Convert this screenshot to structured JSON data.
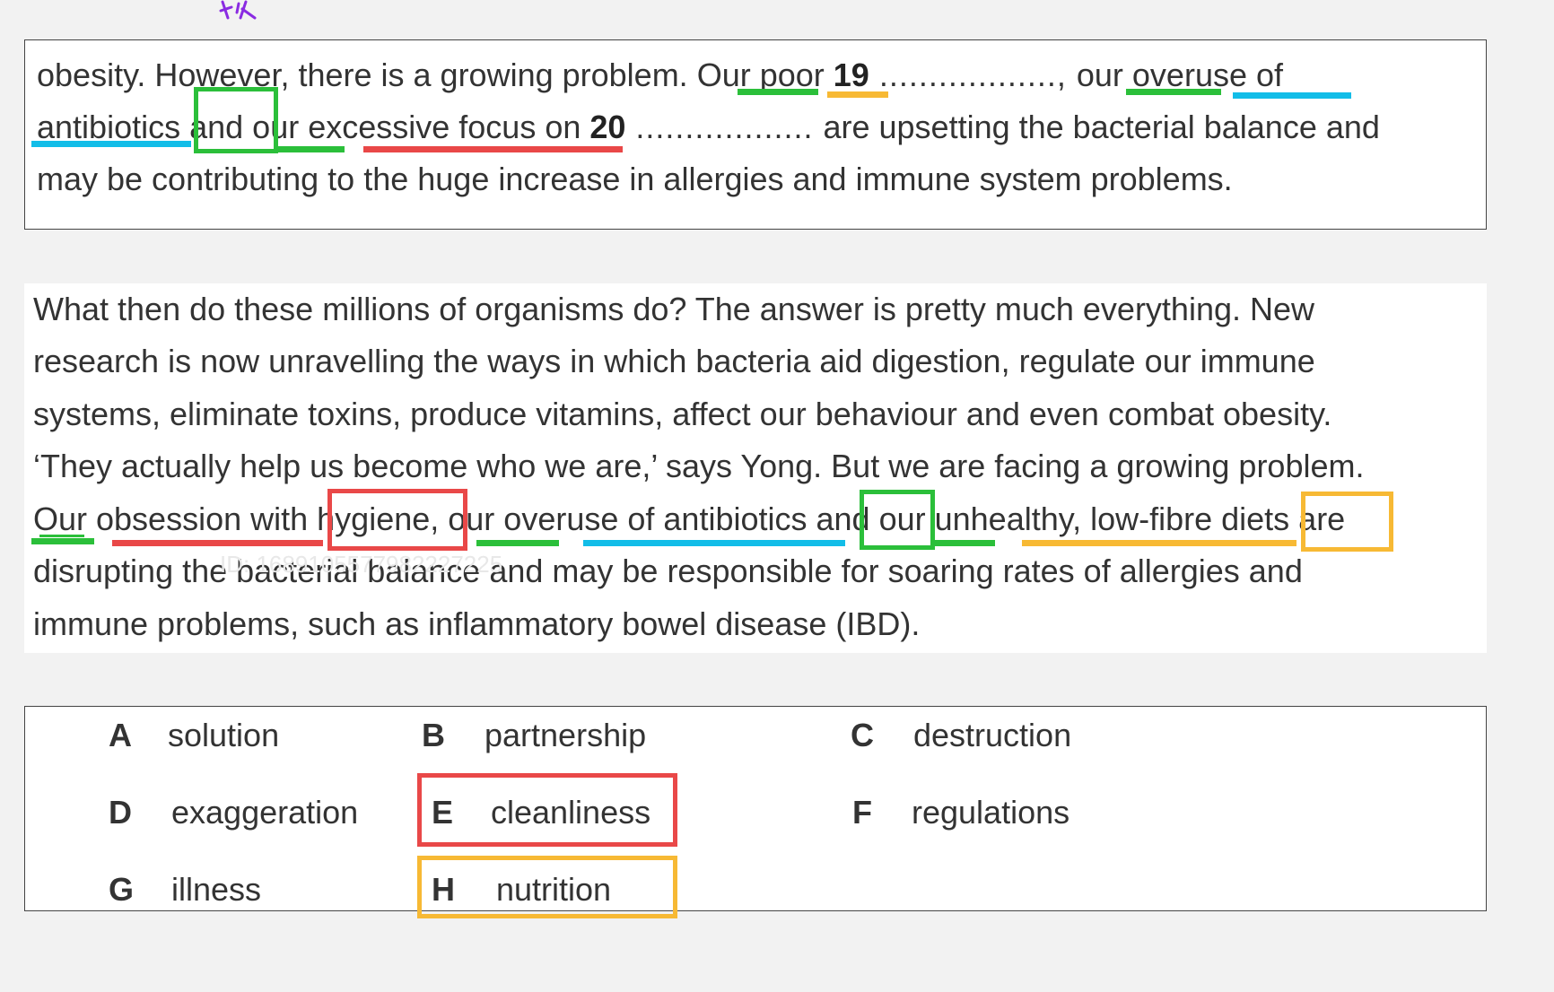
{
  "summary": {
    "line1": {
      "t1": "obesity. However, there is a growing problem. ",
      "t2": "Our poor",
      "t3": " ",
      "num19": "19",
      "dots19": " .................., ",
      "t4": "our overuse of"
    },
    "line2": {
      "t1": "antibiotics",
      "t2": " and ",
      "t3": "our excessive focus on",
      "t4": " ",
      "num20": "20",
      "dots20": " .................. ",
      "t5": "are upsetting the bacterial balance and"
    },
    "line3": "may be contributing to the huge increase in allergies and immune system problems."
  },
  "passage": {
    "line1": "What then do these millions of organisms do? The answer is pretty much everything. New",
    "line2": "research is now unravelling the ways in which bacteria aid digestion, regulate our immune",
    "line3": "systems, eliminate toxins, produce vitamins, affect our behaviour and even combat obesity.",
    "line4": "‘They actually help us become who we are,’ says Yong. But we are facing a growing problem.",
    "line5": {
      "t1": "Our",
      "t2": " obsession with ",
      "t3": "hygiene,",
      "t4": " our overuse of antibiotics ",
      "t5": "and",
      "t6": " our unhealthy, low-fibre ",
      "t7": "diets",
      "t8": " are"
    },
    "line6": "disrupting the bacterial balance and may be responsible for soaring rates of allergies and",
    "line7": "immune problems, such as inflammatory bowel disease (IBD)."
  },
  "options": [
    {
      "letter": "A",
      "word": "solution"
    },
    {
      "letter": "B",
      "word": "partnership"
    },
    {
      "letter": "C",
      "word": "destruction"
    },
    {
      "letter": "D",
      "word": "exaggeration"
    },
    {
      "letter": "E",
      "word": "cleanliness"
    },
    {
      "letter": "F",
      "word": "regulations"
    },
    {
      "letter": "G",
      "word": "illness"
    },
    {
      "letter": "H",
      "word": "nutrition"
    }
  ],
  "colors": {
    "green": "#2bbf3a",
    "red": "#e94848",
    "blue": "#12bde8",
    "orange": "#f7b934",
    "purple_scribble": "#8a2be2"
  },
  "watermark": "ID: 1689105577982227225"
}
